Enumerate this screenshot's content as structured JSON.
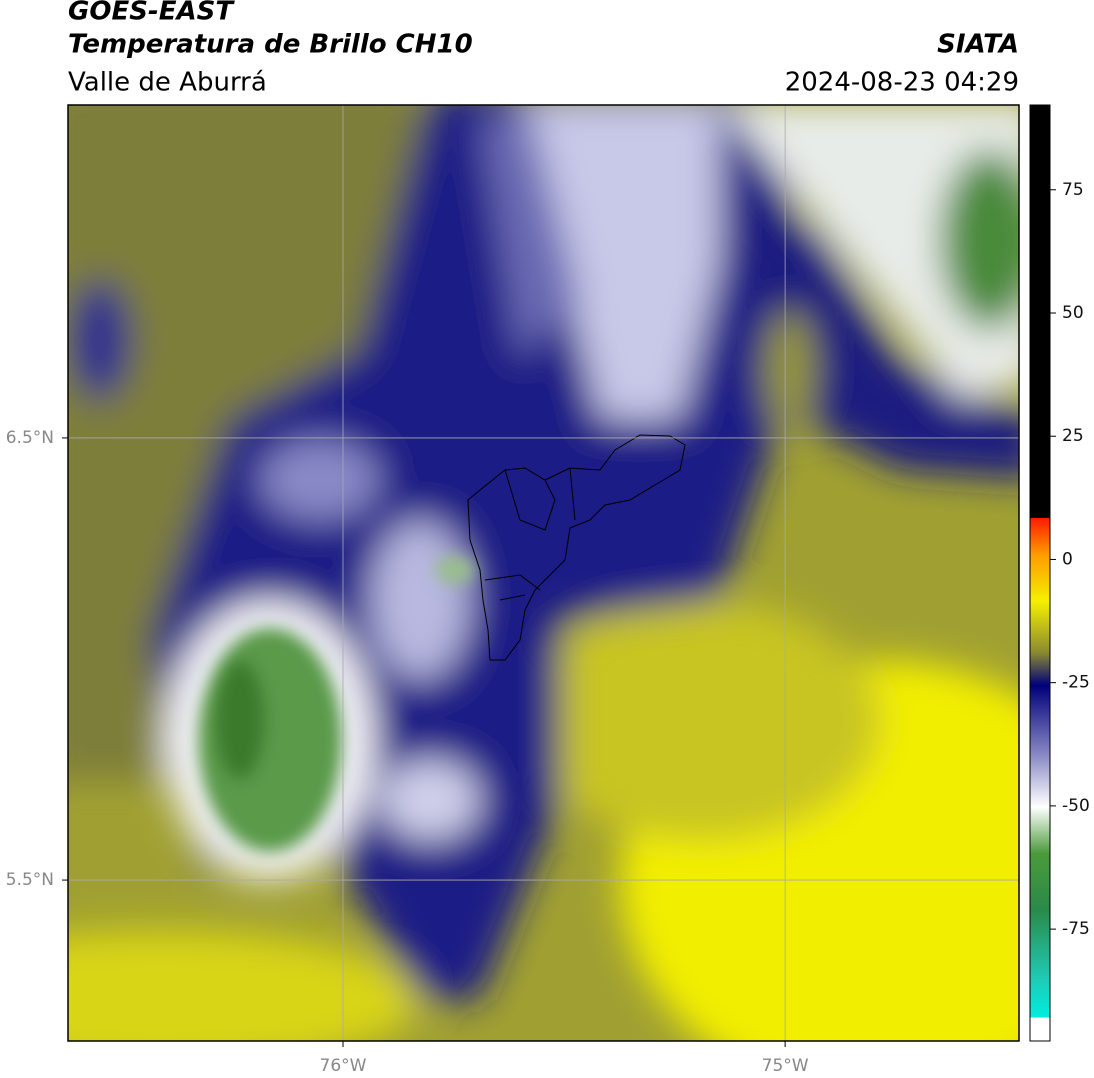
{
  "chart_data": {
    "type": "map",
    "title": "GOES-EAST",
    "subtitle": "Temperatura de Brillo CH10",
    "region": "Valle de Aburrá",
    "source": "SIATA",
    "timestamp": "2024-08-23 04:29",
    "xlim": [
      -76.622,
      -74.471
    ],
    "ylim": [
      5.136,
      7.253
    ],
    "xticks": [
      {
        "value": -76,
        "label": "76°W"
      },
      {
        "value": -75,
        "label": "75°W"
      }
    ],
    "yticks": [
      {
        "value": 6.5,
        "label": "6.5°N"
      },
      {
        "value": 5.5,
        "label": "5.5°N"
      }
    ],
    "grid": true,
    "colorbar": {
      "lim": [
        -97.7,
        92.2
      ],
      "ticks": [
        75,
        50,
        25,
        0,
        -25,
        -50,
        -75
      ]
    }
  }
}
